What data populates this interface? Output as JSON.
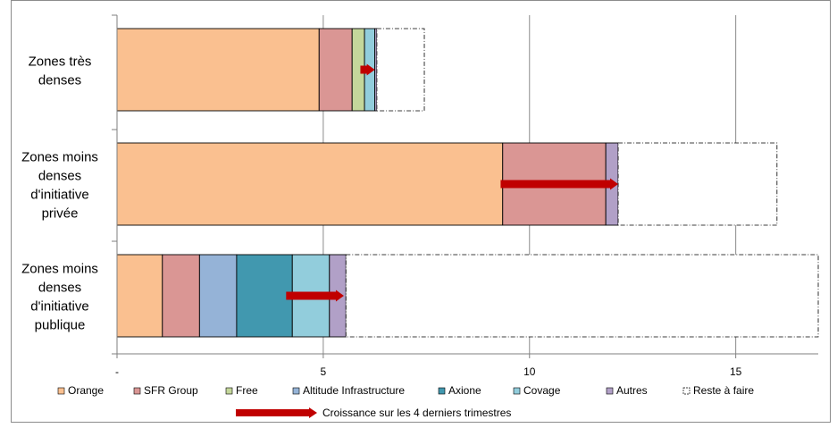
{
  "chart_data": {
    "type": "bar",
    "orientation": "horizontal",
    "stacked": true,
    "categories": [
      [
        "Zones très",
        "denses"
      ],
      [
        "Zones moins",
        "denses",
        "d'initiative",
        "privée"
      ],
      [
        "Zones moins",
        "denses",
        "d'initiative",
        "publique"
      ]
    ],
    "series": [
      {
        "name": "Orange",
        "color": "#FAC090",
        "values": [
          4.9,
          9.35,
          1.1
        ]
      },
      {
        "name": "SFR Group",
        "color": "#DA9694",
        "values": [
          0.8,
          2.5,
          0.9
        ]
      },
      {
        "name": "Free",
        "color": "#C4D79B",
        "values": [
          0.3,
          0,
          0
        ]
      },
      {
        "name": "Altitude Infrastructure",
        "color": "#95B3D7",
        "values": [
          0,
          0,
          0.9
        ]
      },
      {
        "name": "Axione",
        "color": "#4198AF",
        "values": [
          0,
          0,
          1.35
        ]
      },
      {
        "name": "Covage",
        "color": "#92CDDC",
        "values": [
          0.25,
          0,
          0.9
        ]
      },
      {
        "name": "Autres",
        "color": "#B1A0C7",
        "values": [
          0.05,
          0.3,
          0.4
        ]
      },
      {
        "name": "Reste à faire",
        "color": "#FFFFFF",
        "style": "dash-dot-outline",
        "values": [
          1.15,
          3.85,
          11.45
        ]
      }
    ],
    "growth_arrows": {
      "name": "Croissance sur les 4 derniers trimestres",
      "color": "#C00000",
      "ranges": [
        [
          5.9,
          6.25
        ],
        [
          9.3,
          12.15
        ],
        [
          4.1,
          5.5
        ]
      ]
    },
    "x_ticks": [
      "-",
      "5",
      "10",
      "15"
    ],
    "x_tick_values": [
      0,
      5,
      10,
      15
    ],
    "xlim": [
      0,
      17
    ],
    "grid": "vertical",
    "legend_position": "bottom"
  }
}
